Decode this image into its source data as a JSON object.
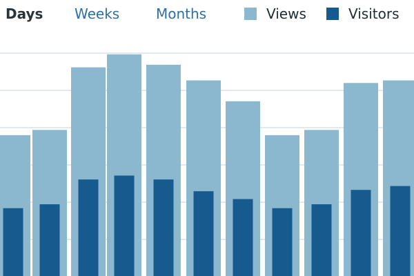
{
  "tabs": {
    "days": "Days",
    "weeks": "Weeks",
    "months": "Months",
    "active": "days"
  },
  "colors": {
    "views": "#8cb8cf",
    "visitors": "#165a8e",
    "gridline": "#d7e2ea",
    "tab_active": "#2c3338",
    "tab_inactive": "#2e6fa1"
  },
  "chart_data": {
    "type": "bar",
    "ylim": [
      0,
      100
    ],
    "grid": true,
    "legend_position": "top-right",
    "series": [
      {
        "name": "Views",
        "values": [
          54,
          56,
          80,
          85,
          81,
          75,
          67,
          54,
          56,
          74,
          75
        ]
      },
      {
        "name": "Visitors",
        "values": [
          26,
          27.5,
          37,
          38.5,
          37,
          32.5,
          29.5,
          26,
          27.5,
          33,
          34.5
        ]
      }
    ]
  }
}
